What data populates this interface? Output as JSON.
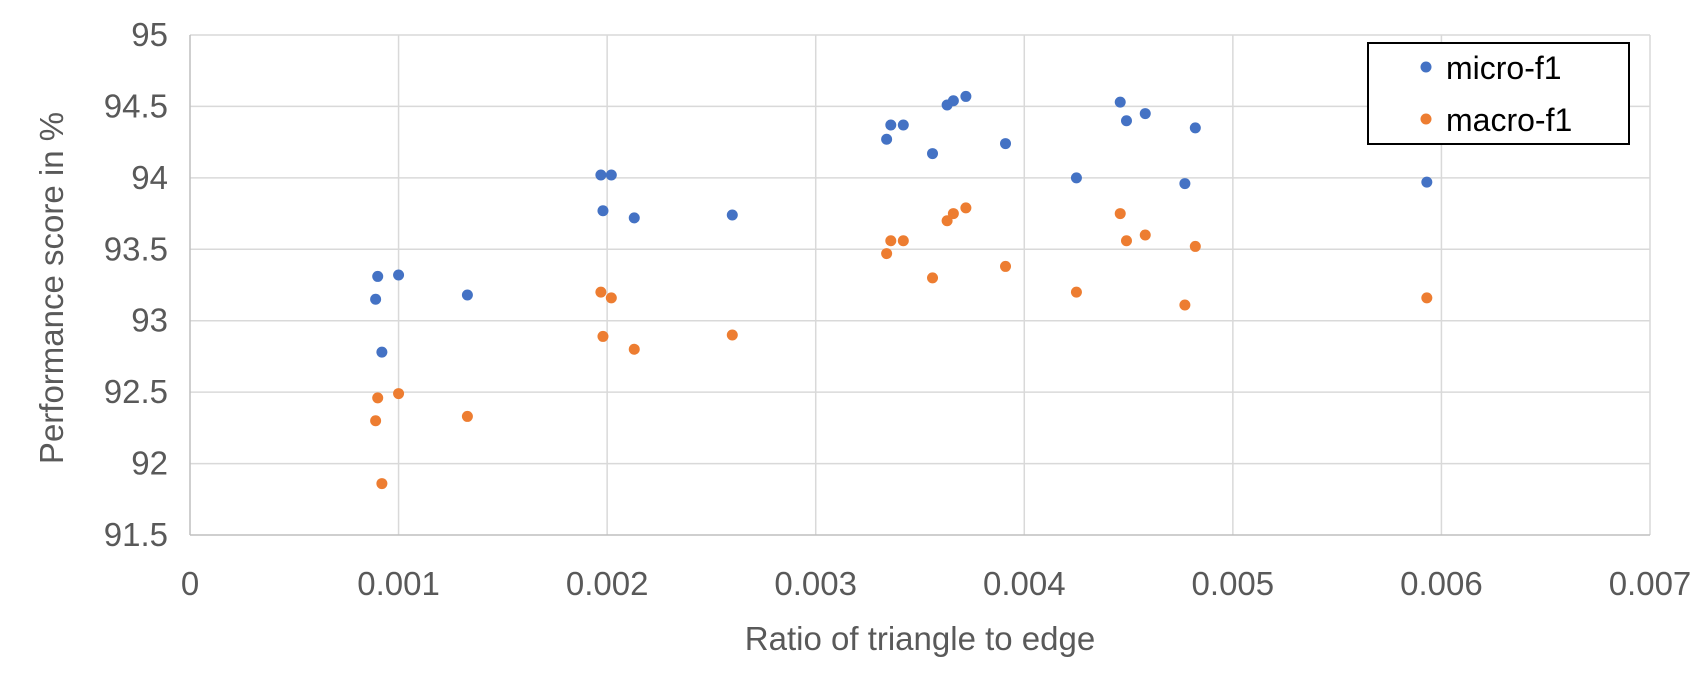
{
  "chart_data": {
    "type": "scatter",
    "title": "",
    "xlabel": "Ratio of triangle to edge",
    "ylabel": "Performance score in %",
    "xlim": [
      0,
      0.007
    ],
    "ylim": [
      91.5,
      95
    ],
    "x_ticks": [
      "0",
      "0.001",
      "0.002",
      "0.003",
      "0.004",
      "0.005",
      "0.006",
      "0.007"
    ],
    "y_ticks": [
      "91.5",
      "92",
      "92.5",
      "93",
      "93.5",
      "94",
      "94.5",
      "95"
    ],
    "grid": true,
    "legend_position": "top-right",
    "colors": {
      "micro-f1": "#4472C4",
      "macro-f1": "#ED7D31",
      "grid": "#D9D9D9",
      "axis": "#BFBFBF",
      "text": "#595959"
    },
    "series": [
      {
        "name": "micro-f1",
        "points": [
          [
            0.00089,
            93.15
          ],
          [
            0.0009,
            93.31
          ],
          [
            0.00092,
            92.78
          ],
          [
            0.001,
            93.32
          ],
          [
            0.00133,
            93.18
          ],
          [
            0.00197,
            94.02
          ],
          [
            0.00198,
            93.77
          ],
          [
            0.00202,
            94.02
          ],
          [
            0.00213,
            93.72
          ],
          [
            0.0026,
            93.74
          ],
          [
            0.00334,
            94.27
          ],
          [
            0.00336,
            94.37
          ],
          [
            0.00342,
            94.37
          ],
          [
            0.00356,
            94.17
          ],
          [
            0.00363,
            94.51
          ],
          [
            0.00366,
            94.54
          ],
          [
            0.00372,
            94.57
          ],
          [
            0.00391,
            94.24
          ],
          [
            0.00425,
            94.0
          ],
          [
            0.00446,
            94.53
          ],
          [
            0.00449,
            94.4
          ],
          [
            0.00458,
            94.45
          ],
          [
            0.00477,
            93.96
          ],
          [
            0.00482,
            94.35
          ],
          [
            0.00593,
            93.97
          ]
        ]
      },
      {
        "name": "macro-f1",
        "points": [
          [
            0.00089,
            92.3
          ],
          [
            0.0009,
            92.46
          ],
          [
            0.00092,
            91.86
          ],
          [
            0.001,
            92.49
          ],
          [
            0.00133,
            92.33
          ],
          [
            0.00197,
            93.2
          ],
          [
            0.00198,
            92.89
          ],
          [
            0.00202,
            93.16
          ],
          [
            0.00213,
            92.8
          ],
          [
            0.0026,
            92.9
          ],
          [
            0.00334,
            93.47
          ],
          [
            0.00336,
            93.56
          ],
          [
            0.00342,
            93.56
          ],
          [
            0.00356,
            93.3
          ],
          [
            0.00363,
            93.7
          ],
          [
            0.00366,
            93.75
          ],
          [
            0.00372,
            93.79
          ],
          [
            0.00391,
            93.38
          ],
          [
            0.00425,
            93.2
          ],
          [
            0.00446,
            93.75
          ],
          [
            0.00449,
            93.56
          ],
          [
            0.00458,
            93.6
          ],
          [
            0.00477,
            93.11
          ],
          [
            0.00482,
            93.52
          ],
          [
            0.00593,
            93.16
          ]
        ]
      }
    ]
  }
}
